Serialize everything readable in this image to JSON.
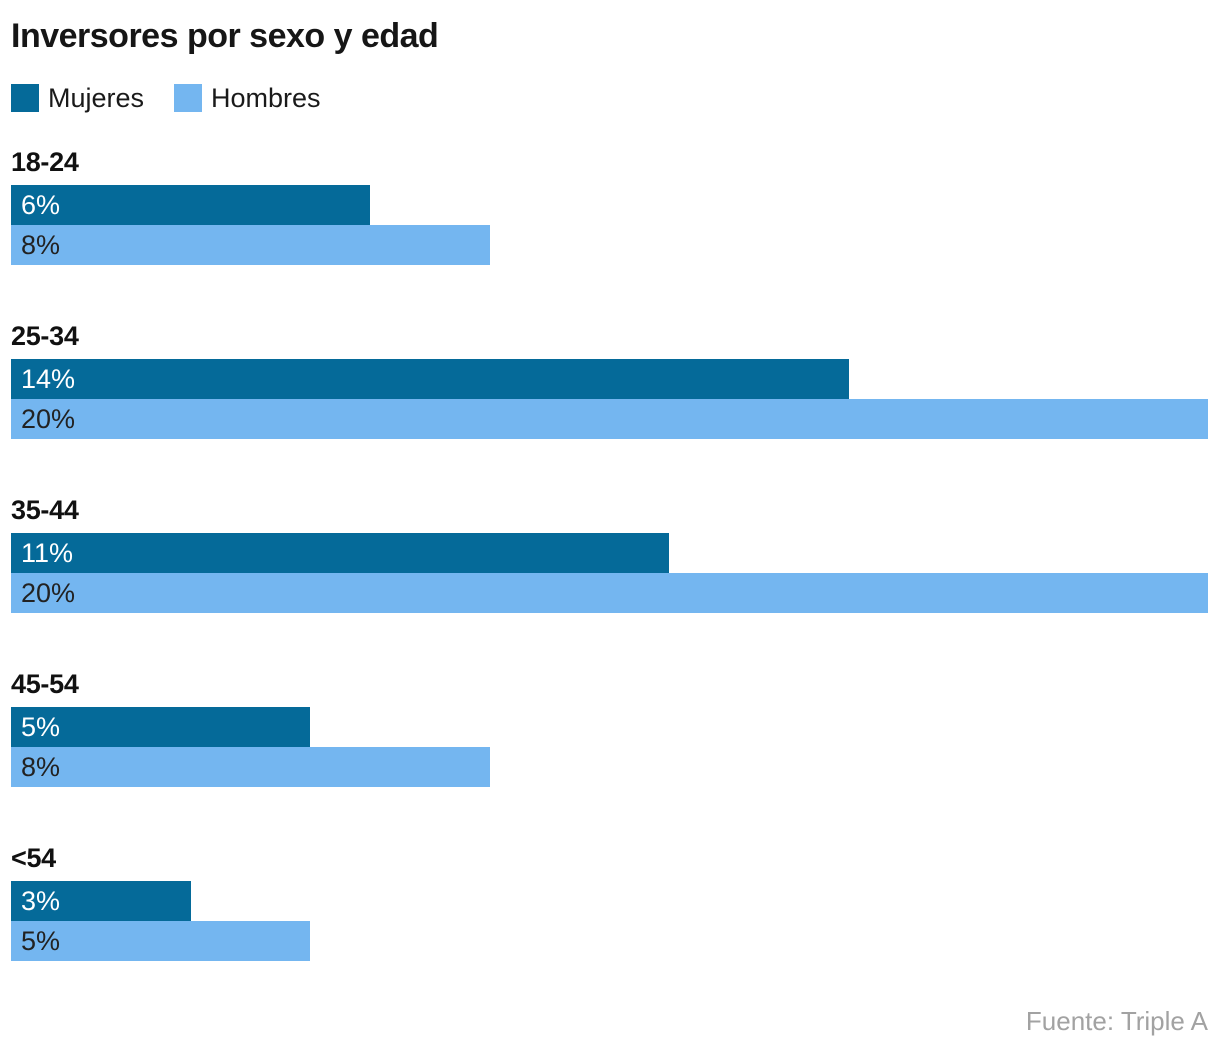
{
  "title": "Inversores por sexo y edad",
  "legend": [
    {
      "label": "Mujeres",
      "color": "#056a99"
    },
    {
      "label": "Hombres",
      "color": "#74b6f0"
    }
  ],
  "source": "Fuente: Triple A",
  "chart_data": {
    "type": "bar",
    "orientation": "horizontal",
    "title": "Inversores por sexo y edad",
    "categories": [
      "18-24",
      "25-34",
      "35-44",
      "45-54",
      "<54"
    ],
    "series": [
      {
        "name": "Mujeres",
        "color": "#056a99",
        "values": [
          6,
          14,
          11,
          5,
          3
        ]
      },
      {
        "name": "Hombres",
        "color": "#74b6f0",
        "values": [
          8,
          20,
          20,
          8,
          5
        ]
      }
    ],
    "value_suffix": "%",
    "xlim": [
      0,
      20
    ],
    "grid": false,
    "legend_position": "top-left",
    "value_labels": "inside-left",
    "source": "Fuente: Triple A"
  }
}
